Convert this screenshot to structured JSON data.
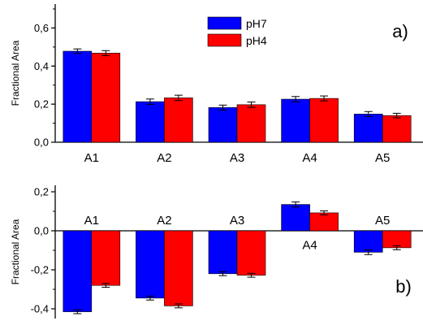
{
  "chart_data": [
    {
      "panel_label": "a)",
      "type": "bar",
      "ylabel": "Fractional Area",
      "ylim": [
        0,
        0.7
      ],
      "yticks": [
        "0,0",
        "0,2",
        "0,4",
        "0,6"
      ],
      "categories": [
        "A1",
        "A2",
        "A3",
        "A4",
        "A5"
      ],
      "category_label_position": "below-axis",
      "legend_position": "top-center",
      "series": [
        {
          "name": "pH7",
          "color": "#0000ff",
          "values": [
            0.478,
            0.213,
            0.182,
            0.226,
            0.148
          ],
          "errors": [
            0.012,
            0.014,
            0.013,
            0.014,
            0.013
          ]
        },
        {
          "name": "pH4",
          "color": "#ff0000",
          "values": [
            0.468,
            0.233,
            0.197,
            0.23,
            0.14
          ],
          "errors": [
            0.013,
            0.014,
            0.014,
            0.013,
            0.012
          ]
        }
      ]
    },
    {
      "panel_label": "b)",
      "type": "bar",
      "ylabel": "Fractional Area",
      "ylim": [
        -0.45,
        0.2
      ],
      "yticks": [
        "-0,4",
        "-0,2",
        "0,0",
        "0,2"
      ],
      "categories": [
        "A1",
        "A2",
        "A3",
        "A4",
        "A5"
      ],
      "category_label_position": "inside-near-zero",
      "series": [
        {
          "name": "pH7",
          "color": "#0000ff",
          "values": [
            -0.415,
            -0.345,
            -0.22,
            0.135,
            -0.11
          ],
          "errors": [
            0.01,
            0.01,
            0.01,
            0.013,
            0.012
          ]
        },
        {
          "name": "pH4",
          "color": "#ff0000",
          "values": [
            -0.28,
            -0.385,
            -0.228,
            0.092,
            -0.087
          ],
          "errors": [
            0.01,
            0.01,
            0.01,
            0.01,
            0.01
          ]
        }
      ]
    }
  ]
}
